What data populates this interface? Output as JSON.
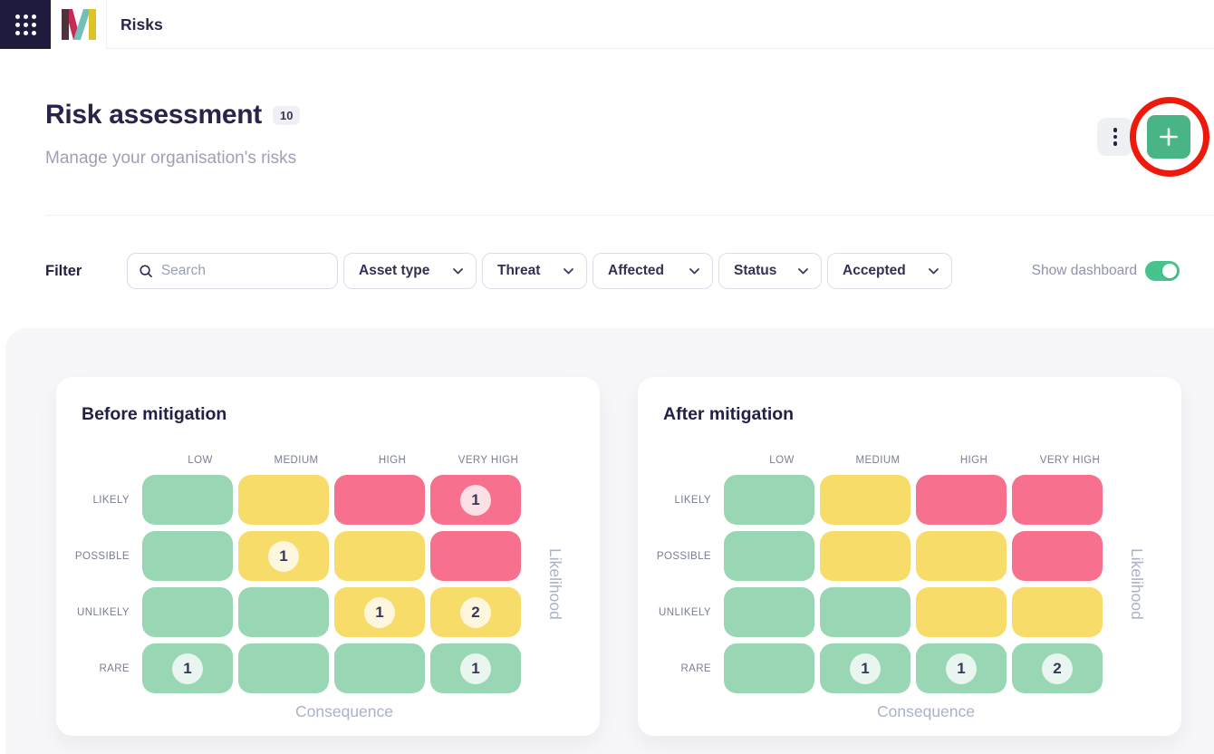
{
  "topbar": {
    "app_title": "Risks"
  },
  "page": {
    "title": "Risk assessment",
    "count_badge": "10",
    "subtitle": "Manage your organisation's risks"
  },
  "filter": {
    "label": "Filter",
    "search": {
      "value": "",
      "placeholder": "Search"
    },
    "dropdowns": [
      "Asset type",
      "Threat",
      "Affected",
      "Status",
      "Accepted"
    ],
    "show_dashboard": {
      "label": "Show dashboard",
      "on": true
    }
  },
  "icons": {
    "app_launcher": "grid-3x3-dots",
    "brand": "w-monogram-logo",
    "search": "magnifier",
    "dropdown": "chevron-down",
    "more": "kebab-vertical",
    "add": "plus",
    "annotation": "red-highlight-circle"
  },
  "colors": {
    "topbar_square": "#1e1b3d",
    "accent_green": "#49b587",
    "toggle_green": "#47c48e",
    "annotation_red": "#ee190b",
    "risk_low": "#98d6b4",
    "risk_medium": "#f8dc69",
    "risk_high": "#f7708e"
  },
  "cards": [
    {
      "title": "Before mitigation",
      "columns": [
        "LOW",
        "MEDIUM",
        "HIGH",
        "VERY HIGH"
      ],
      "rows": [
        "LIKELY",
        "POSSIBLE",
        "UNLIKELY",
        "RARE"
      ],
      "x_axis": "Consequence",
      "y_axis": "Likelihood",
      "cells": [
        [
          {
            "level": "low"
          },
          {
            "level": "medium"
          },
          {
            "level": "high"
          },
          {
            "level": "high",
            "count": 1
          }
        ],
        [
          {
            "level": "low"
          },
          {
            "level": "medium",
            "count": 1
          },
          {
            "level": "medium"
          },
          {
            "level": "high"
          }
        ],
        [
          {
            "level": "low"
          },
          {
            "level": "low"
          },
          {
            "level": "medium",
            "count": 1
          },
          {
            "level": "medium",
            "count": 2
          }
        ],
        [
          {
            "level": "low",
            "count": 1
          },
          {
            "level": "low"
          },
          {
            "level": "low"
          },
          {
            "level": "low",
            "count": 1
          }
        ]
      ]
    },
    {
      "title": "After mitigation",
      "columns": [
        "LOW",
        "MEDIUM",
        "HIGH",
        "VERY HIGH"
      ],
      "rows": [
        "LIKELY",
        "POSSIBLE",
        "UNLIKELY",
        "RARE"
      ],
      "x_axis": "Consequence",
      "y_axis": "Likelihood",
      "cells": [
        [
          {
            "level": "low"
          },
          {
            "level": "medium"
          },
          {
            "level": "high"
          },
          {
            "level": "high"
          }
        ],
        [
          {
            "level": "low"
          },
          {
            "level": "medium"
          },
          {
            "level": "medium"
          },
          {
            "level": "high"
          }
        ],
        [
          {
            "level": "low"
          },
          {
            "level": "low"
          },
          {
            "level": "medium"
          },
          {
            "level": "medium"
          }
        ],
        [
          {
            "level": "low"
          },
          {
            "level": "low",
            "count": 1
          },
          {
            "level": "low",
            "count": 1
          },
          {
            "level": "low",
            "count": 2
          }
        ]
      ]
    }
  ]
}
